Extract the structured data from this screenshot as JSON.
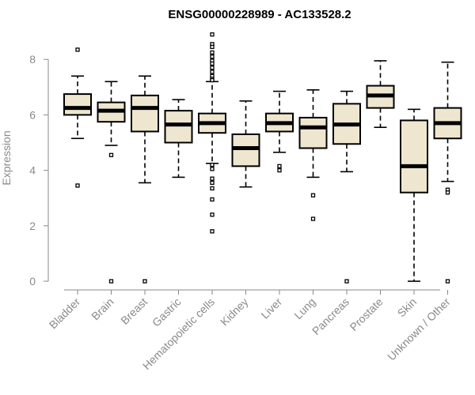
{
  "chart_data": {
    "type": "box",
    "title": "ENSG00000228989 - AC133528.2",
    "xlabel": "",
    "ylabel": "Expression",
    "ylim": [
      0,
      8.9
    ],
    "yticks": [
      0,
      2,
      4,
      6,
      8
    ],
    "grid": false,
    "categories": [
      "Bladder",
      "Brain",
      "Breast",
      "Gastric",
      "Hematopoietic cells",
      "Kidney",
      "Liver",
      "Lung",
      "Pancreas",
      "Prostate",
      "Skin",
      "Unknown / Other"
    ],
    "boxes": [
      {
        "category": "Bladder",
        "min": 5.15,
        "q1": 6.0,
        "median": 6.25,
        "q3": 6.75,
        "max": 7.4,
        "outliers": [
          8.35,
          3.45
        ]
      },
      {
        "category": "Brain",
        "min": 4.9,
        "q1": 5.75,
        "median": 6.15,
        "q3": 6.45,
        "max": 7.2,
        "outliers": [
          4.55,
          0.0
        ]
      },
      {
        "category": "Breast",
        "min": 3.55,
        "q1": 5.4,
        "median": 6.25,
        "q3": 6.7,
        "max": 7.4,
        "outliers": [
          0.0
        ]
      },
      {
        "category": "Gastric",
        "min": 3.75,
        "q1": 5.0,
        "median": 5.65,
        "q3": 6.15,
        "max": 6.55,
        "outliers": []
      },
      {
        "category": "Hematopoietic cells",
        "min": 4.25,
        "q1": 5.35,
        "median": 5.7,
        "q3": 6.05,
        "max": 7.2,
        "outliers": [
          8.9,
          8.55,
          8.45,
          8.25,
          8.1,
          7.95,
          7.85,
          7.7,
          7.55,
          7.4,
          7.3,
          7.25,
          4.2,
          4.05,
          3.7,
          3.55,
          3.35,
          2.95,
          2.4,
          1.8
        ]
      },
      {
        "category": "Kidney",
        "min": 3.4,
        "q1": 4.15,
        "median": 4.8,
        "q3": 5.3,
        "max": 6.5,
        "outliers": []
      },
      {
        "category": "Liver",
        "min": 4.65,
        "q1": 5.4,
        "median": 5.7,
        "q3": 6.05,
        "max": 6.85,
        "outliers": [
          4.15,
          4.0
        ]
      },
      {
        "category": "Lung",
        "min": 3.75,
        "q1": 4.8,
        "median": 5.55,
        "q3": 5.9,
        "max": 6.9,
        "outliers": [
          3.1,
          2.25
        ]
      },
      {
        "category": "Pancreas",
        "min": 3.95,
        "q1": 4.95,
        "median": 5.65,
        "q3": 6.4,
        "max": 6.85,
        "outliers": [
          0.0
        ]
      },
      {
        "category": "Prostate",
        "min": 5.55,
        "q1": 6.25,
        "median": 6.7,
        "q3": 7.05,
        "max": 7.95,
        "outliers": []
      },
      {
        "category": "Skin",
        "min": 0.0,
        "q1": 3.2,
        "median": 4.15,
        "q3": 5.8,
        "max": 6.2,
        "outliers": []
      },
      {
        "category": "Unknown / Other",
        "min": 3.6,
        "q1": 5.15,
        "median": 5.7,
        "q3": 6.25,
        "max": 7.9,
        "outliers": [
          3.3,
          3.2,
          0.0
        ]
      }
    ]
  }
}
